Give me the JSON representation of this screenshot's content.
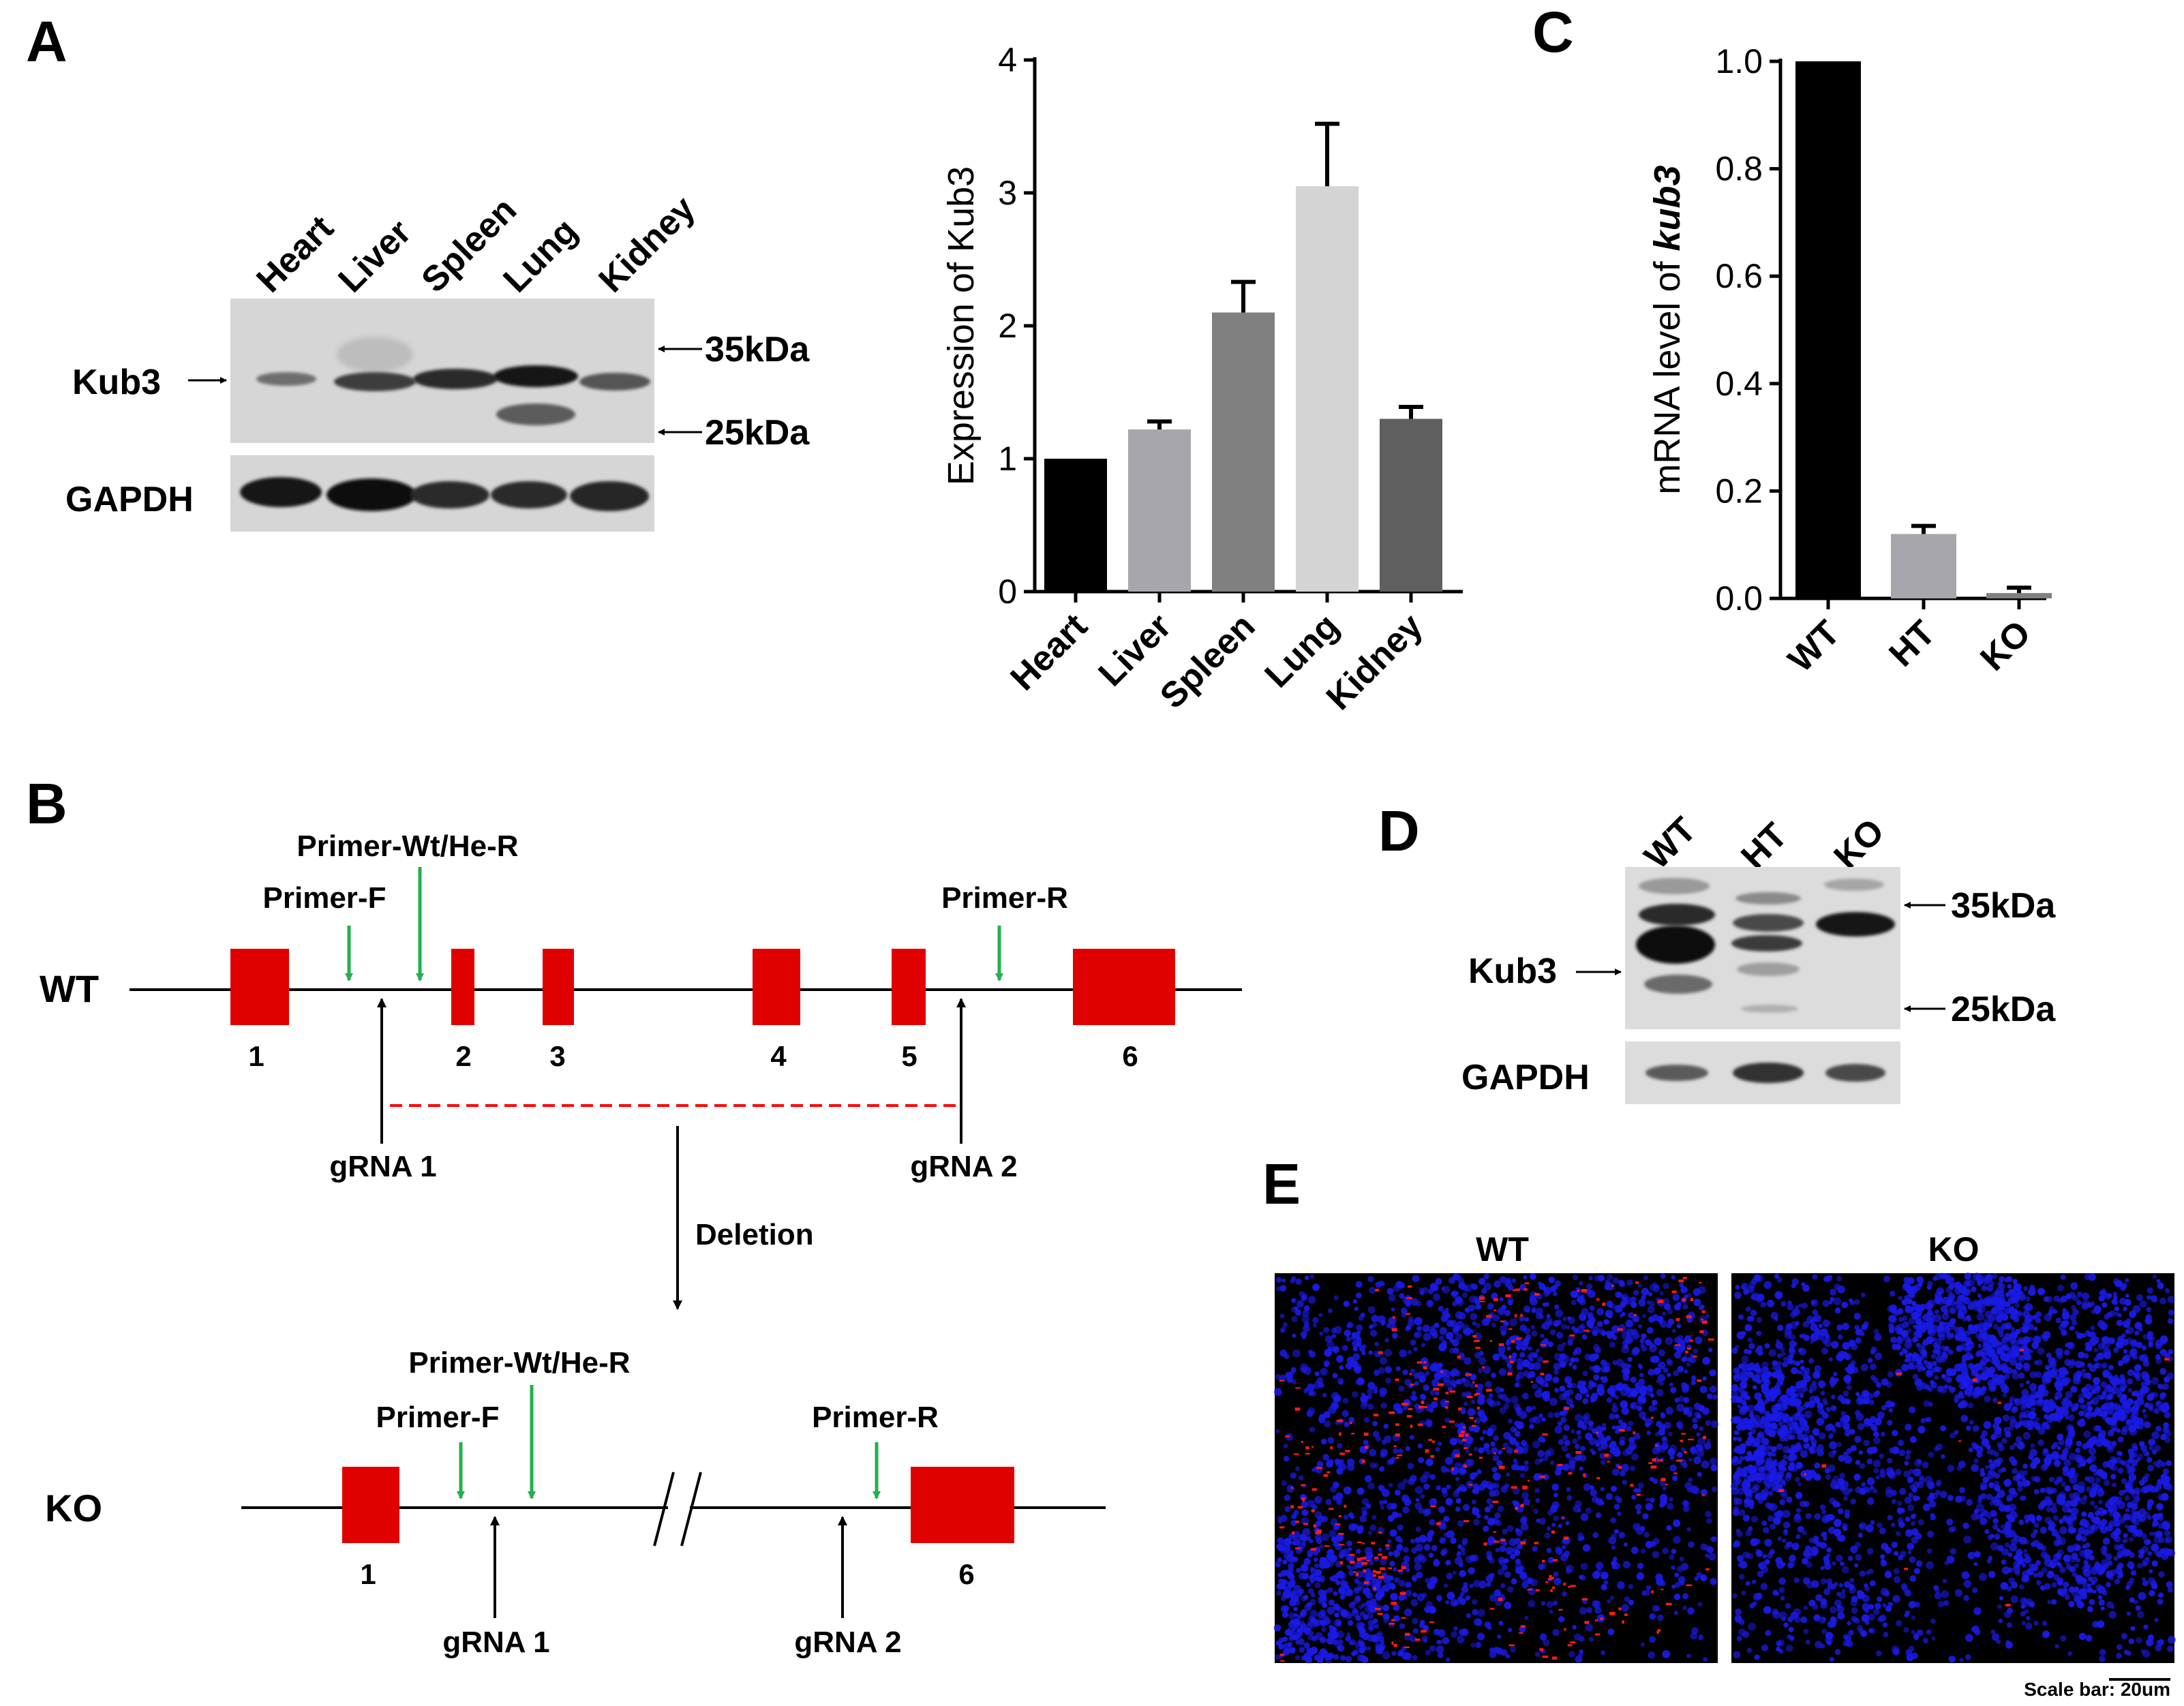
{
  "panels": {
    "a": "A",
    "b": "B",
    "c": "C",
    "d": "D",
    "e": "E"
  },
  "blot_a": {
    "lanes": [
      "Heart",
      "Liver",
      "Spleen",
      "Lung",
      "Kidney"
    ],
    "protein": "Kub3",
    "loading_control": "GAPDH",
    "marker_high": "35kDa",
    "marker_low": "25kDa"
  },
  "chart_data": [
    {
      "type": "bar",
      "categories": [
        "Heart",
        "Liver",
        "Spleen",
        "Lung",
        "Kidney"
      ],
      "values": [
        1.0,
        1.22,
        2.1,
        3.05,
        1.3
      ],
      "errors": [
        0.0,
        0.06,
        0.23,
        0.47,
        0.09
      ],
      "colors": [
        "#000000",
        "#a7a6ad",
        "#808080",
        "#d4d4d4",
        "#5f5f5f"
      ],
      "ylabel": "Expression of Kub3",
      "ylim": [
        0,
        4
      ],
      "yticks": [
        "0",
        "1",
        "2",
        "3",
        "4"
      ],
      "grid": false
    },
    {
      "type": "bar",
      "categories": [
        "WT",
        "HT",
        "KO"
      ],
      "values": [
        1.0,
        0.12,
        0.01
      ],
      "errors": [
        0.0,
        0.015,
        0.01
      ],
      "colors": [
        "#000000",
        "#a7a6ad",
        "#808080"
      ],
      "ylabel_prefix": "mRNA level of ",
      "ylabel_gene": "kub3",
      "ylim": [
        0,
        1.0
      ],
      "yticks": [
        "0.0",
        "0.2",
        "0.4",
        "0.6",
        "0.8",
        "1.0"
      ],
      "grid": false
    }
  ],
  "diagram": {
    "wt_label": "WT",
    "ko_label": "KO",
    "exons": [
      "1",
      "2",
      "3",
      "4",
      "5",
      "6"
    ],
    "primer_f": "Primer-F",
    "primer_wt_he_r": "Primer-Wt/He-R",
    "primer_r": "Primer-R",
    "grna1": "gRNA 1",
    "grna2": "gRNA 2",
    "deletion": "Deletion",
    "exon_color": "#e00000",
    "primer_color": "#22b14c",
    "deletion_color": "#ff0000"
  },
  "blot_d": {
    "lanes": [
      "WT",
      "HT",
      "KO"
    ],
    "protein": "Kub3",
    "loading_control": "GAPDH",
    "marker_high": "35kDa",
    "marker_low": "25kDa"
  },
  "panel_e": {
    "left_title": "WT",
    "right_title": "KO",
    "scale_bar": "Scale bar: 20um",
    "nuclei_color": "#1a1ae6",
    "signal_color": "#ff1a1a"
  }
}
